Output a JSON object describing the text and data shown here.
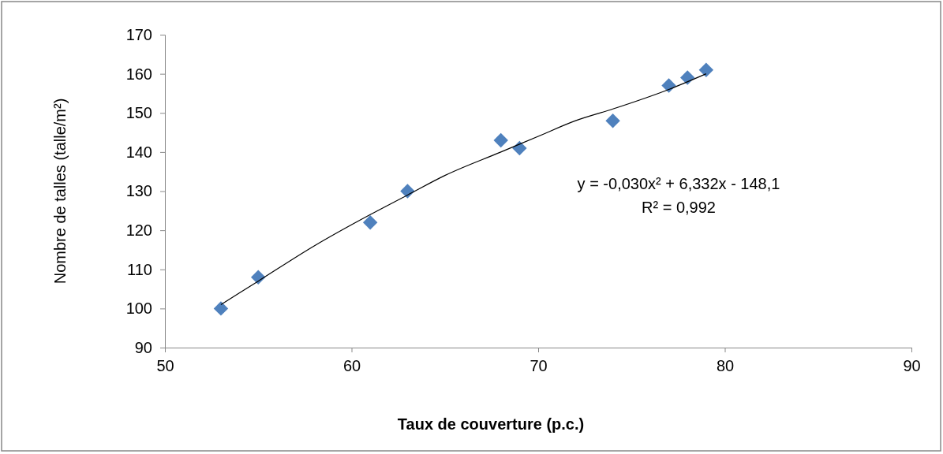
{
  "chart_data": {
    "type": "scatter",
    "xlabel": "Taux de couverture (p.c.)",
    "ylabel": "Nombre de talles (talle/m²)",
    "x": [
      53,
      55,
      61,
      63,
      68,
      69,
      74,
      77,
      78,
      79
    ],
    "xlim": [
      50,
      90
    ],
    "xticks": [
      50,
      60,
      70,
      80,
      90
    ],
    "ylim": [
      90,
      170
    ],
    "yticks": [
      90,
      100,
      110,
      120,
      130,
      140,
      150,
      160,
      170
    ],
    "grid": false,
    "series": [
      {
        "marker": "diamond",
        "color": "#4f81bd",
        "values": [
          100,
          108,
          122,
          130,
          143,
          141,
          148,
          157,
          159,
          161
        ]
      },
      {
        "type": "line",
        "marker": "none",
        "color": "#000000",
        "x": [
          53,
          55,
          58,
          61,
          63,
          65,
          68,
          70,
          72,
          74,
          77,
          79
        ],
        "values": [
          101,
          107,
          116,
          124,
          129,
          134,
          140,
          144,
          148,
          151,
          156,
          160
        ]
      }
    ],
    "annotations": [
      "y = -0,030x² + 6,332x - 148,1",
      "R² = 0,992"
    ]
  }
}
